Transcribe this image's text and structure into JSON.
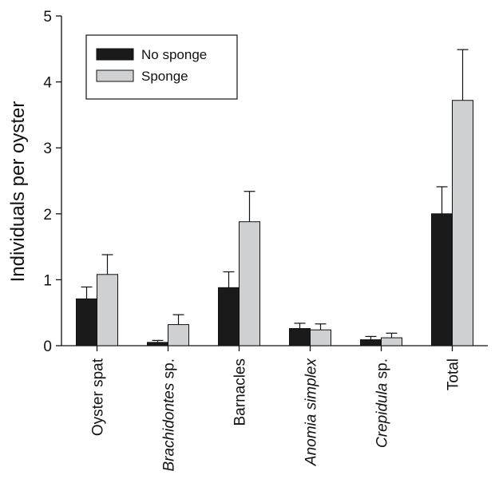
{
  "chart_data": {
    "type": "bar",
    "ylabel": "Individuals per oyster",
    "ylim": [
      0,
      5
    ],
    "yticks": [
      0,
      1,
      2,
      3,
      4,
      5
    ],
    "legend_position": "top-left",
    "grid": false,
    "categories": [
      {
        "italic": "",
        "plain": "Oyster spat"
      },
      {
        "italic": "Brachidontes",
        "plain": " sp."
      },
      {
        "italic": "",
        "plain": "Barnacles"
      },
      {
        "italic": "Anomia simplex",
        "plain": ""
      },
      {
        "italic": "Crepidula",
        "plain": " sp."
      },
      {
        "italic": "",
        "plain": "Total"
      }
    ],
    "series": [
      {
        "name": "No sponge",
        "color": "#1a1a1a",
        "values": [
          0.71,
          0.05,
          0.88,
          0.26,
          0.09,
          2.0
        ],
        "errors": [
          0.18,
          0.03,
          0.24,
          0.08,
          0.05,
          0.41
        ]
      },
      {
        "name": "Sponge",
        "color": "#cfd0d2",
        "values": [
          1.08,
          0.32,
          1.88,
          0.24,
          0.12,
          3.72
        ],
        "errors": [
          0.3,
          0.15,
          0.46,
          0.09,
          0.07,
          0.77
        ]
      }
    ]
  }
}
